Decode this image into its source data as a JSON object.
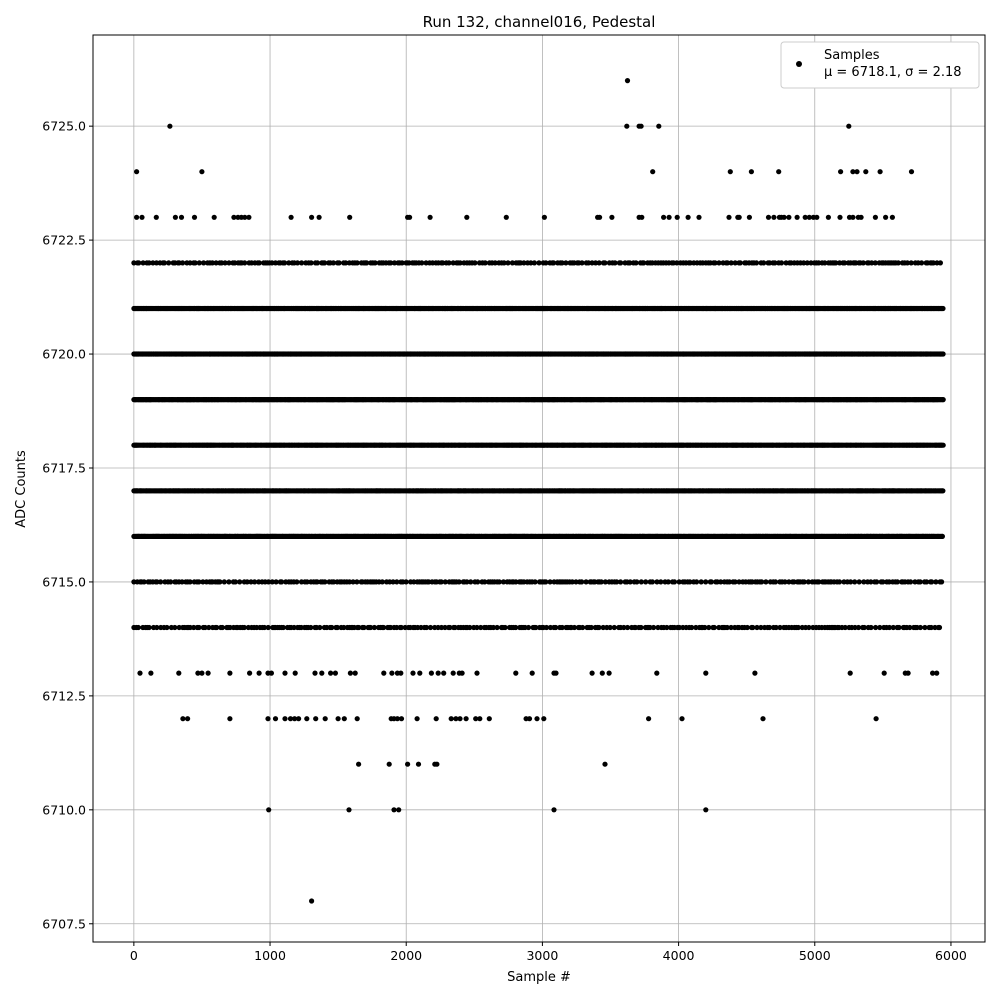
{
  "chart_data": {
    "type": "scatter",
    "title": "Run 132, channel016, Pedestal",
    "xlabel": "Sample #",
    "ylabel": "ADC Counts",
    "xlim": [
      -300,
      6250
    ],
    "ylim": [
      6707.1,
      6727.0
    ],
    "xticks": [
      0,
      1000,
      2000,
      3000,
      4000,
      5000,
      6000
    ],
    "yticks": [
      6707.5,
      6710.0,
      6712.5,
      6715.0,
      6717.5,
      6720.0,
      6722.5,
      6725.0
    ],
    "grid": true,
    "legend_position": "top-right",
    "n_samples": 5940,
    "series": [
      {
        "name": "Samples",
        "label_text": "Samples",
        "stats_text": "μ = 6718.1, σ = 2.18",
        "color": "#000000",
        "dense_levels": [
          {
            "y": 6721,
            "x_ranges": [
              [
                0,
                5945
              ]
            ]
          },
          {
            "y": 6720,
            "x_ranges": [
              [
                0,
                5945
              ]
            ]
          },
          {
            "y": 6719,
            "x_ranges": [
              [
                0,
                5945
              ]
            ]
          },
          {
            "y": 6718,
            "x_ranges": [
              [
                0,
                5945
              ]
            ]
          },
          {
            "y": 6717,
            "x_ranges": [
              [
                0,
                5945
              ]
            ]
          },
          {
            "y": 6716,
            "x_ranges": [
              [
                0,
                5945
              ]
            ]
          }
        ],
        "sparse_levels": [
          {
            "y": 6722,
            "x_ranges": [
              [
                0,
                5945
              ]
            ]
          },
          {
            "y": 6715,
            "x_ranges": [
              [
                0,
                5945
              ]
            ]
          },
          {
            "y": 6714,
            "x_ranges": [
              [
                0,
                5945
              ]
            ]
          }
        ],
        "points": [
          [
            1305,
            6708
          ],
          [
            990,
            6710
          ],
          [
            1580,
            6710
          ],
          [
            1910,
            6710
          ],
          [
            1945,
            6710
          ],
          [
            3085,
            6710
          ],
          [
            4200,
            6710
          ],
          [
            1650,
            6711
          ],
          [
            1875,
            6711
          ],
          [
            2010,
            6711
          ],
          [
            2090,
            6711
          ],
          [
            2210,
            6711
          ],
          [
            2225,
            6711
          ],
          [
            3460,
            6711
          ],
          [
            360,
            6712
          ],
          [
            395,
            6712
          ],
          [
            705,
            6712
          ],
          [
            985,
            6712
          ],
          [
            1040,
            6712
          ],
          [
            1110,
            6712
          ],
          [
            1150,
            6712
          ],
          [
            1180,
            6712
          ],
          [
            1210,
            6712
          ],
          [
            1270,
            6712
          ],
          [
            1335,
            6712
          ],
          [
            1405,
            6712
          ],
          [
            1500,
            6712
          ],
          [
            1545,
            6712
          ],
          [
            1640,
            6712
          ],
          [
            1890,
            6712
          ],
          [
            1910,
            6712
          ],
          [
            1935,
            6712
          ],
          [
            1965,
            6712
          ],
          [
            2080,
            6712
          ],
          [
            2220,
            6712
          ],
          [
            2330,
            6712
          ],
          [
            2365,
            6712
          ],
          [
            2395,
            6712
          ],
          [
            2440,
            6712
          ],
          [
            2510,
            6712
          ],
          [
            2540,
            6712
          ],
          [
            2610,
            6712
          ],
          [
            2880,
            6712
          ],
          [
            2905,
            6712
          ],
          [
            2960,
            6712
          ],
          [
            3010,
            6712
          ],
          [
            3780,
            6712
          ],
          [
            4025,
            6712
          ],
          [
            4620,
            6712
          ],
          [
            5450,
            6712
          ],
          [
            45,
            6713
          ],
          [
            125,
            6713
          ],
          [
            330,
            6713
          ],
          [
            470,
            6713
          ],
          [
            500,
            6713
          ],
          [
            545,
            6713
          ],
          [
            705,
            6713
          ],
          [
            850,
            6713
          ],
          [
            920,
            6713
          ],
          [
            985,
            6713
          ],
          [
            1010,
            6713
          ],
          [
            1110,
            6713
          ],
          [
            1185,
            6713
          ],
          [
            1330,
            6713
          ],
          [
            1380,
            6713
          ],
          [
            1445,
            6713
          ],
          [
            1480,
            6713
          ],
          [
            1590,
            6713
          ],
          [
            1625,
            6713
          ],
          [
            1835,
            6713
          ],
          [
            1895,
            6713
          ],
          [
            1935,
            6713
          ],
          [
            1960,
            6713
          ],
          [
            2050,
            6713
          ],
          [
            2100,
            6713
          ],
          [
            2185,
            6713
          ],
          [
            2235,
            6713
          ],
          [
            2275,
            6713
          ],
          [
            2345,
            6713
          ],
          [
            2390,
            6713
          ],
          [
            2410,
            6713
          ],
          [
            2520,
            6713
          ],
          [
            2805,
            6713
          ],
          [
            2925,
            6713
          ],
          [
            3085,
            6713
          ],
          [
            3100,
            6713
          ],
          [
            3365,
            6713
          ],
          [
            3440,
            6713
          ],
          [
            3490,
            6713
          ],
          [
            3840,
            6713
          ],
          [
            4200,
            6713
          ],
          [
            4560,
            6713
          ],
          [
            5260,
            6713
          ],
          [
            5510,
            6713
          ],
          [
            5665,
            6713
          ],
          [
            5685,
            6713
          ],
          [
            5865,
            6713
          ],
          [
            5895,
            6713
          ],
          [
            20,
            6723
          ],
          [
            60,
            6723
          ],
          [
            165,
            6723
          ],
          [
            305,
            6723
          ],
          [
            350,
            6723
          ],
          [
            445,
            6723
          ],
          [
            590,
            6723
          ],
          [
            735,
            6723
          ],
          [
            765,
            6723
          ],
          [
            790,
            6723
          ],
          [
            815,
            6723
          ],
          [
            845,
            6723
          ],
          [
            1155,
            6723
          ],
          [
            1305,
            6723
          ],
          [
            1360,
            6723
          ],
          [
            1585,
            6723
          ],
          [
            2010,
            6723
          ],
          [
            2025,
            6723
          ],
          [
            2175,
            6723
          ],
          [
            2445,
            6723
          ],
          [
            2735,
            6723
          ],
          [
            3015,
            6723
          ],
          [
            3405,
            6723
          ],
          [
            3420,
            6723
          ],
          [
            3510,
            6723
          ],
          [
            3710,
            6723
          ],
          [
            3730,
            6723
          ],
          [
            3890,
            6723
          ],
          [
            3930,
            6723
          ],
          [
            3990,
            6723
          ],
          [
            4070,
            6723
          ],
          [
            4150,
            6723
          ],
          [
            4370,
            6723
          ],
          [
            4435,
            6723
          ],
          [
            4445,
            6723
          ],
          [
            4520,
            6723
          ],
          [
            4660,
            6723
          ],
          [
            4700,
            6723
          ],
          [
            4740,
            6723
          ],
          [
            4755,
            6723
          ],
          [
            4775,
            6723
          ],
          [
            4810,
            6723
          ],
          [
            4870,
            6723
          ],
          [
            4930,
            6723
          ],
          [
            4960,
            6723
          ],
          [
            4990,
            6723
          ],
          [
            5015,
            6723
          ],
          [
            5100,
            6723
          ],
          [
            5185,
            6723
          ],
          [
            5255,
            6723
          ],
          [
            5280,
            6723
          ],
          [
            5320,
            6723
          ],
          [
            5340,
            6723
          ],
          [
            5445,
            6723
          ],
          [
            5520,
            6723
          ],
          [
            5570,
            6723
          ],
          [
            20,
            6724
          ],
          [
            500,
            6724
          ],
          [
            3810,
            6724
          ],
          [
            4380,
            6724
          ],
          [
            4535,
            6724
          ],
          [
            4735,
            6724
          ],
          [
            5190,
            6724
          ],
          [
            5280,
            6724
          ],
          [
            5310,
            6724
          ],
          [
            5375,
            6724
          ],
          [
            5480,
            6724
          ],
          [
            5710,
            6724
          ],
          [
            265,
            6725
          ],
          [
            3620,
            6725
          ],
          [
            3710,
            6725
          ],
          [
            3725,
            6725
          ],
          [
            3855,
            6725
          ],
          [
            5250,
            6725
          ],
          [
            3625,
            6726
          ]
        ]
      }
    ]
  }
}
